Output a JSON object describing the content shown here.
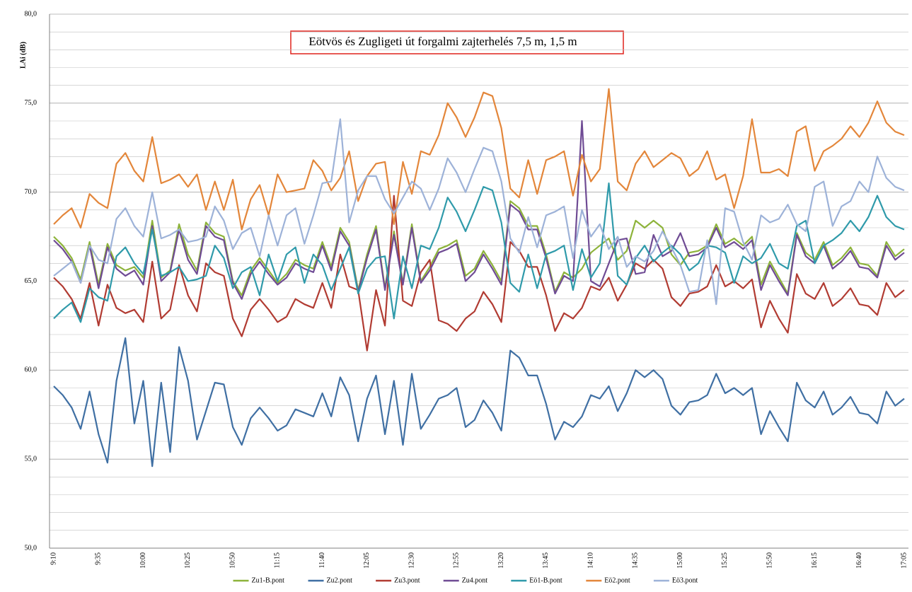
{
  "chart_data": {
    "type": "line",
    "title": "Eötvös és Zugligeti út forgalmi zajterhelés 7,5 m, 1,5 m",
    "y_label": "LAi (dB)",
    "categories": [
      "9:10",
      null,
      null,
      null,
      null,
      "9:35",
      null,
      null,
      null,
      null,
      "10:00",
      null,
      null,
      null,
      null,
      "10:25",
      null,
      null,
      null,
      null,
      "10:50",
      null,
      null,
      null,
      null,
      "11:15",
      null,
      null,
      null,
      null,
      "11:40",
      null,
      null,
      null,
      null,
      "12:05",
      null,
      null,
      null,
      null,
      "12:30",
      null,
      null,
      null,
      null,
      "12:55",
      null,
      null,
      null,
      null,
      "13:20",
      null,
      null,
      null,
      null,
      "13:45",
      null,
      null,
      null,
      null,
      "14:10",
      null,
      null,
      null,
      null,
      "14:35",
      null,
      null,
      null,
      null,
      "15:00",
      null,
      null,
      null,
      null,
      "15:25",
      null,
      null,
      null,
      null,
      "15:50",
      null,
      null,
      null,
      null,
      "16:15",
      null,
      null,
      null,
      null,
      "16:40",
      null,
      null,
      null,
      null,
      "17:05"
    ],
    "ylim": [
      50,
      80
    ],
    "yticks": [
      {
        "value": 50,
        "label": "50,0"
      },
      {
        "value": 55,
        "label": "55,0"
      },
      {
        "value": 60,
        "label": "60,0"
      },
      {
        "value": 65,
        "label": "65,0"
      },
      {
        "value": 70,
        "label": "70,0"
      },
      {
        "value": 75,
        "label": "75,0"
      },
      {
        "value": 80,
        "label": "80,0"
      }
    ],
    "minor_yticks": [
      51,
      52,
      53,
      54,
      56,
      57,
      58,
      59,
      61,
      62,
      63,
      64,
      66,
      67,
      68,
      69,
      71,
      72,
      73,
      74,
      76,
      77,
      78,
      79
    ],
    "grid": true,
    "legend": "bottom",
    "series": [
      {
        "name": "Zu1-B.pont",
        "color": "#8db33a",
        "values": [
          67.5,
          67.0,
          66.3,
          65.1,
          67.2,
          64.8,
          67.1,
          65.9,
          65.6,
          65.8,
          65.2,
          68.4,
          65.2,
          65.6,
          68.2,
          66.5,
          65.6,
          68.3,
          67.7,
          67.5,
          65.0,
          64.2,
          65.6,
          66.3,
          65.6,
          64.9,
          65.4,
          66.2,
          65.9,
          65.7,
          67.2,
          65.8,
          68.0,
          67.2,
          64.5,
          66.5,
          68.1,
          64.6,
          67.8,
          64.9,
          68.2,
          65.0,
          65.8,
          66.8,
          67.0,
          67.3,
          65.3,
          65.7,
          66.7,
          65.9,
          65.0,
          69.5,
          69.1,
          68.1,
          68.1,
          66.5,
          64.4,
          65.5,
          65.2,
          65.7,
          66.6,
          67.0,
          67.4,
          66.2,
          66.7,
          68.4,
          68.0,
          68.4,
          68.0,
          66.5,
          65.9,
          66.6,
          66.7,
          67.0,
          68.2,
          67.1,
          67.4,
          67.0,
          67.5,
          64.8,
          66.1,
          65.2,
          64.3,
          67.7,
          66.6,
          66.2,
          67.2,
          65.9,
          66.3,
          66.9,
          66.0,
          65.9,
          65.3,
          67.2,
          66.4,
          66.8
        ]
      },
      {
        "name": "Zu2.pont",
        "color": "#3f6fa3",
        "values": [
          59.1,
          58.6,
          57.9,
          56.7,
          58.8,
          56.4,
          54.8,
          59.4,
          61.8,
          57.0,
          59.4,
          54.6,
          59.3,
          55.4,
          61.3,
          59.4,
          56.1,
          57.7,
          59.3,
          59.2,
          56.8,
          55.8,
          57.3,
          57.9,
          57.3,
          56.6,
          56.9,
          57.8,
          57.6,
          57.4,
          58.7,
          57.4,
          59.6,
          58.6,
          56.0,
          58.4,
          59.7,
          56.4,
          59.4,
          55.8,
          59.8,
          56.7,
          57.5,
          58.4,
          58.6,
          59.0,
          56.8,
          57.2,
          58.3,
          57.6,
          56.6,
          61.1,
          60.7,
          59.7,
          59.7,
          58.1,
          56.1,
          57.1,
          56.8,
          57.4,
          58.6,
          58.4,
          59.1,
          57.7,
          58.7,
          60.0,
          59.6,
          60.0,
          59.5,
          58.0,
          57.5,
          58.2,
          58.3,
          58.6,
          59.8,
          58.7,
          59.0,
          58.6,
          59.0,
          56.4,
          57.7,
          56.8,
          56.0,
          59.3,
          58.3,
          57.9,
          58.8,
          57.5,
          57.9,
          58.5,
          57.6,
          57.5,
          57.0,
          58.8,
          58.0,
          58.4
        ]
      },
      {
        "name": "Zu3.pont",
        "color": "#b13b32",
        "values": [
          65.2,
          64.7,
          64.0,
          62.9,
          64.9,
          62.5,
          64.8,
          63.5,
          63.2,
          63.4,
          62.7,
          66.1,
          62.9,
          63.4,
          65.9,
          64.2,
          63.3,
          66.0,
          65.5,
          65.3,
          62.9,
          61.9,
          63.4,
          64.0,
          63.4,
          62.7,
          63.0,
          64.0,
          63.7,
          63.5,
          64.9,
          63.5,
          66.5,
          64.7,
          64.5,
          61.1,
          64.5,
          62.5,
          69.8,
          63.9,
          63.6,
          65.5,
          66.2,
          62.8,
          62.6,
          62.2,
          62.9,
          63.3,
          64.4,
          63.7,
          62.7,
          67.2,
          66.7,
          65.8,
          65.8,
          64.2,
          62.2,
          63.2,
          62.9,
          63.5,
          64.7,
          64.5,
          65.2,
          63.9,
          64.8,
          66.0,
          65.7,
          66.2,
          65.7,
          64.1,
          63.6,
          64.3,
          64.4,
          64.7,
          65.9,
          64.7,
          65.0,
          64.6,
          65.1,
          62.4,
          63.9,
          62.9,
          62.1,
          65.4,
          64.3,
          64.0,
          64.9,
          63.6,
          64.0,
          64.6,
          63.7,
          63.6,
          63.1,
          64.9,
          64.1,
          64.5
        ]
      },
      {
        "name": "Zu4.pont",
        "color": "#6f4b94",
        "values": [
          67.3,
          66.8,
          66.1,
          64.9,
          67.0,
          64.6,
          66.9,
          65.7,
          65.3,
          65.6,
          64.8,
          68.1,
          65.0,
          65.5,
          67.9,
          66.2,
          65.4,
          68.1,
          67.5,
          67.3,
          64.9,
          64.0,
          65.4,
          66.1,
          65.4,
          64.8,
          65.2,
          66.0,
          65.7,
          65.5,
          67.0,
          65.6,
          67.8,
          67.0,
          64.4,
          66.3,
          67.9,
          64.5,
          67.6,
          64.8,
          68.0,
          64.9,
          65.6,
          66.6,
          66.8,
          67.1,
          65.0,
          65.5,
          66.5,
          65.7,
          64.8,
          69.3,
          68.9,
          67.9,
          67.9,
          66.3,
          64.3,
          65.3,
          65.0,
          74.0,
          65.0,
          64.7,
          66.0,
          67.3,
          67.4,
          65.4,
          65.5,
          67.6,
          66.4,
          66.7,
          67.7,
          66.4,
          66.5,
          66.9,
          68.0,
          66.9,
          67.2,
          66.8,
          67.3,
          64.5,
          65.9,
          65.0,
          64.2,
          67.6,
          66.4,
          66.0,
          67.0,
          65.7,
          66.1,
          66.7,
          65.8,
          65.7,
          65.2,
          67.0,
          66.2,
          66.6
        ]
      },
      {
        "name": "Eö1-B.pont",
        "color": "#2f9aaa",
        "values": [
          62.9,
          63.4,
          63.8,
          62.7,
          64.6,
          64.1,
          63.9,
          66.4,
          66.9,
          66.0,
          65.4,
          67.9,
          65.3,
          65.5,
          65.8,
          65.0,
          65.1,
          65.3,
          67.0,
          66.3,
          64.6,
          65.5,
          65.8,
          64.2,
          66.5,
          65.0,
          66.5,
          66.9,
          64.9,
          66.5,
          65.9,
          64.5,
          65.7,
          66.9,
          64.3,
          65.7,
          66.3,
          66.4,
          62.9,
          66.4,
          64.6,
          67.0,
          66.8,
          68.0,
          69.7,
          68.9,
          67.8,
          69.0,
          70.3,
          70.1,
          68.3,
          64.9,
          64.4,
          66.5,
          64.6,
          66.5,
          66.7,
          67.0,
          64.5,
          66.8,
          65.2,
          66.0,
          70.5,
          65.3,
          64.8,
          66.3,
          67.0,
          66.1,
          66.6,
          67.0,
          66.5,
          65.6,
          66.0,
          67.0,
          66.9,
          66.6,
          64.9,
          66.4,
          66.0,
          66.3,
          67.1,
          66.0,
          65.7,
          68.1,
          68.4,
          66.0,
          67.0,
          67.3,
          67.7,
          68.4,
          67.8,
          68.6,
          69.8,
          68.6,
          68.1,
          67.9
        ]
      },
      {
        "name": "Eö2.pont",
        "color": "#e3863a",
        "values": [
          68.2,
          68.7,
          69.1,
          68.0,
          69.9,
          69.4,
          69.1,
          71.6,
          72.2,
          71.2,
          70.6,
          73.1,
          70.5,
          70.7,
          71.0,
          70.3,
          71.0,
          69.0,
          70.6,
          69.0,
          70.7,
          67.9,
          69.6,
          70.4,
          68.7,
          71.0,
          70.0,
          70.1,
          70.2,
          71.8,
          71.2,
          70.1,
          70.8,
          72.3,
          69.5,
          70.9,
          71.6,
          71.7,
          68.2,
          71.7,
          69.9,
          72.3,
          72.1,
          73.2,
          75.0,
          74.2,
          73.1,
          74.2,
          75.6,
          75.4,
          73.6,
          70.2,
          69.7,
          71.8,
          69.9,
          71.8,
          72.0,
          72.3,
          69.8,
          72.1,
          70.6,
          71.3,
          75.8,
          70.6,
          70.1,
          71.6,
          72.3,
          71.4,
          71.8,
          72.2,
          71.9,
          70.9,
          71.3,
          72.3,
          70.7,
          71.0,
          69.1,
          70.9,
          74.1,
          71.1,
          71.1,
          71.3,
          70.9,
          73.4,
          73.7,
          71.2,
          72.3,
          72.6,
          73.0,
          73.7,
          73.1,
          73.9,
          75.1,
          73.9,
          73.4,
          73.2
        ]
      },
      {
        "name": "Eö3.pont",
        "color": "#9db2d8",
        "values": [
          65.3,
          65.7,
          66.1,
          64.9,
          67.0,
          66.2,
          66.0,
          68.5,
          69.1,
          68.1,
          67.5,
          70.0,
          67.4,
          67.6,
          67.9,
          67.2,
          67.3,
          67.5,
          69.2,
          68.4,
          66.8,
          67.7,
          68.0,
          66.4,
          68.7,
          67.0,
          68.7,
          69.1,
          67.1,
          68.7,
          70.5,
          70.6,
          74.1,
          68.3,
          70.1,
          70.9,
          70.9,
          69.6,
          68.8,
          69.7,
          70.6,
          70.2,
          69.0,
          70.2,
          71.9,
          71.1,
          70.0,
          71.3,
          72.5,
          72.3,
          70.6,
          67.4,
          66.6,
          68.6,
          66.9,
          68.7,
          68.9,
          69.2,
          66.3,
          69.0,
          67.5,
          68.2,
          66.8,
          67.5,
          65.8,
          66.4,
          66.1,
          66.7,
          67.8,
          66.9,
          65.9,
          64.4,
          64.5,
          67.3,
          63.7,
          69.1,
          68.9,
          67.2,
          66.2,
          68.7,
          68.3,
          68.5,
          69.3,
          68.2,
          67.8,
          70.3,
          70.6,
          68.1,
          69.2,
          69.5,
          70.6,
          70.0,
          72.0,
          70.8,
          70.3,
          70.1
        ]
      }
    ]
  }
}
